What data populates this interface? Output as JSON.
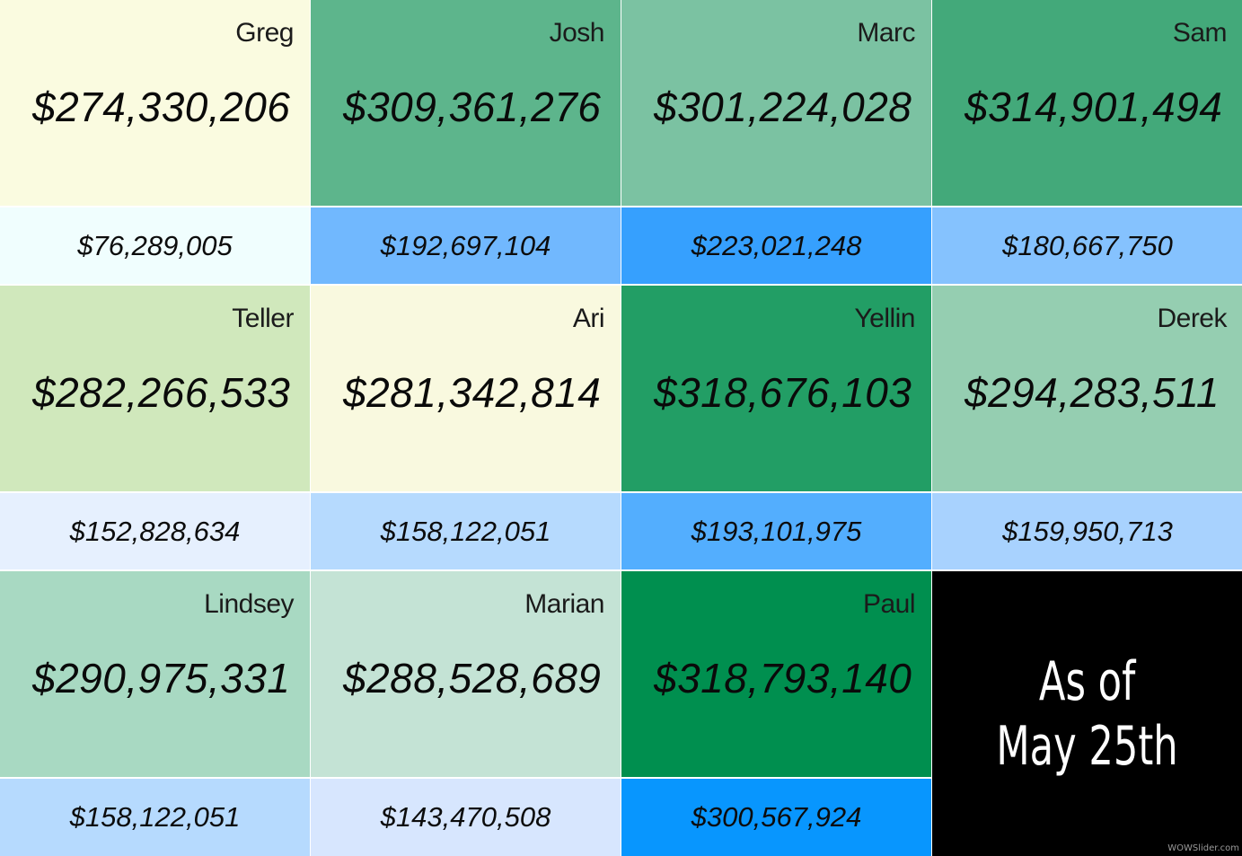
{
  "blocks": [
    {
      "name": "Greg",
      "total": "$274,330,206",
      "sub": "$76,289,005",
      "top_color": "#fafbe0",
      "bot_color": "#f0fefe"
    },
    {
      "name": "Josh",
      "total": "$309,361,276",
      "sub": "$192,697,104",
      "top_color": "#5db58c",
      "bot_color": "#71b8fe"
    },
    {
      "name": "Marc",
      "total": "$301,224,028",
      "sub": "$223,021,248",
      "top_color": "#7bc2a2",
      "bot_color": "#36a0fe"
    },
    {
      "name": "Sam",
      "total": "$314,901,494",
      "sub": "$180,667,750",
      "top_color": "#43a97a",
      "bot_color": "#85c2fe"
    },
    {
      "name": "Teller",
      "total": "$282,266,533",
      "sub": "$152,828,634",
      "top_color": "#d0e8bc",
      "bot_color": "#e6f0fe"
    },
    {
      "name": "Ari",
      "total": "$281,342,814",
      "sub": "$158,122,051",
      "top_color": "#f9f9df",
      "bot_color": "#b6dafe"
    },
    {
      "name": "Yellin",
      "total": "$318,676,103",
      "sub": "$193,101,975",
      "top_color": "#229e65",
      "bot_color": "#53aefe"
    },
    {
      "name": "Derek",
      "total": "$294,283,511",
      "sub": "$159,950,713",
      "top_color": "#95ceb1",
      "bot_color": "#a8d2fe"
    },
    {
      "name": "Lindsey",
      "total": "$290,975,331",
      "sub": "$158,122,051",
      "top_color": "#a8d9c2",
      "bot_color": "#b6dafe"
    },
    {
      "name": "Marian",
      "total": "$288,528,689",
      "sub": "$143,470,508",
      "top_color": "#c4e3d5",
      "bot_color": "#d7e6fe"
    },
    {
      "name": "Paul",
      "total": "$318,793,140",
      "sub": "$300,567,924",
      "top_color": "#008f4f",
      "bot_color": "#0896fe"
    }
  ],
  "as_of": {
    "line1": "As of",
    "line2": "May 25th",
    "color": "#000000"
  },
  "watermark": "WOWSlider.com"
}
